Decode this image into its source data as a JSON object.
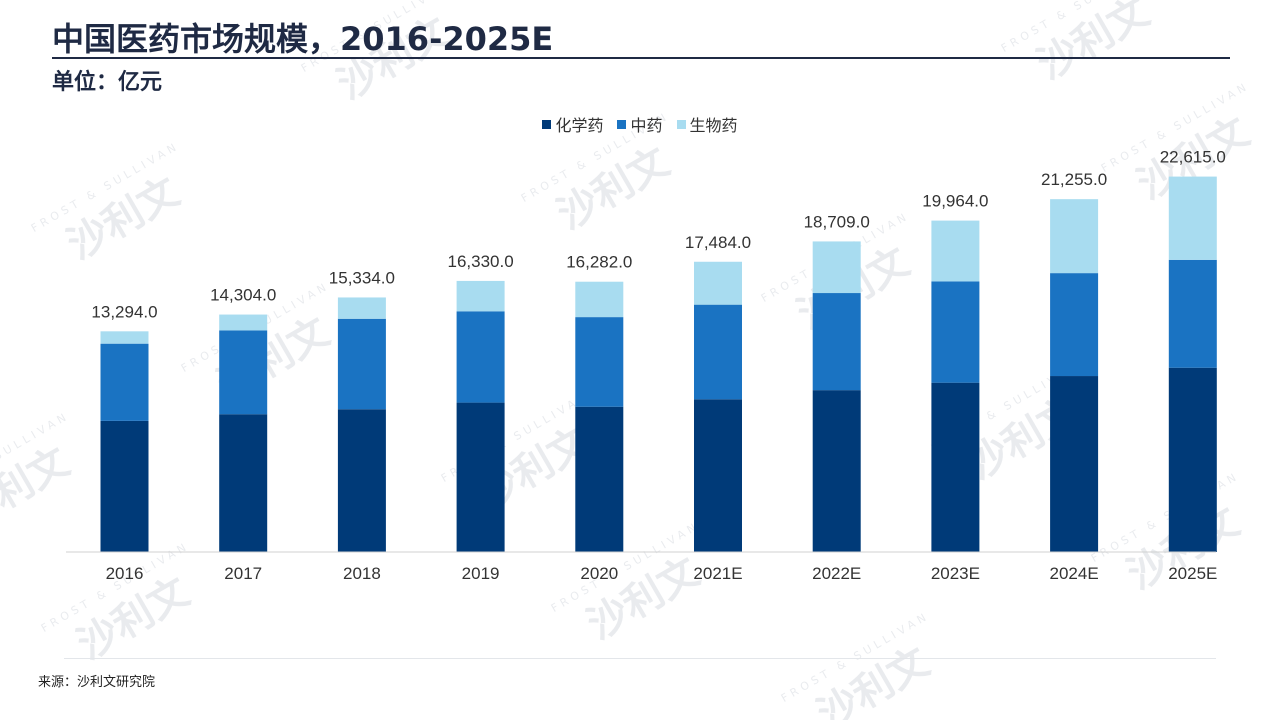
{
  "header": {
    "title": "中国医药市场规模，2016-2025E",
    "unit": "单位：亿元"
  },
  "footer": {
    "source": "来源：沙利文研究院"
  },
  "watermark": {
    "text": "沙利文",
    "subtext": "FROST & SULLIVAN"
  },
  "chart_data": {
    "type": "bar",
    "stacked": true,
    "categories": [
      "2016",
      "2017",
      "2018",
      "2019",
      "2020",
      "2021E",
      "2022E",
      "2023E",
      "2024E",
      "2025E"
    ],
    "series": [
      {
        "name": "化学药",
        "color": "#003a78",
        "values": [
          7900,
          8300,
          8600,
          9000,
          8750,
          9200,
          9750,
          10200,
          10600,
          11100
        ]
      },
      {
        "name": "中药",
        "color": "#1a73c2",
        "values": [
          4650,
          5050,
          5450,
          5500,
          5400,
          5700,
          5850,
          6100,
          6200,
          6500
        ]
      },
      {
        "name": "生物药",
        "color": "#a8dcf0",
        "values": [
          744,
          954,
          1284,
          1830,
          2132,
          2584,
          3109,
          3664,
          4455,
          5015
        ]
      }
    ],
    "totals": [
      "13,294.0",
      "14,304.0",
      "15,334.0",
      "16,330.0",
      "16,282.0",
      "17,484.0",
      "18,709.0",
      "19,964.0",
      "21,255.0",
      "22,615.0"
    ],
    "ylim": [
      0,
      25000
    ],
    "legend_position": "top-center",
    "grid": false
  }
}
